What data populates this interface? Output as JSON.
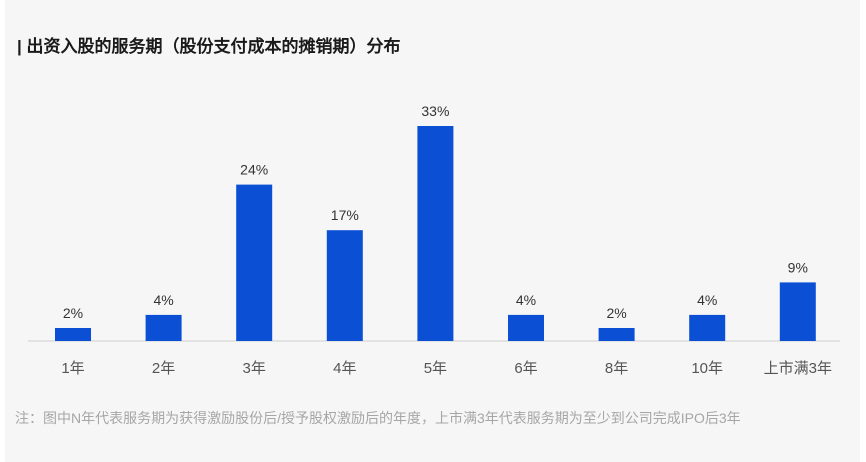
{
  "title": "| 出资入股的服务期（股份支付成本的摊销期）分布",
  "note": "注：图中N年代表服务期为获得激励股份后/授予股权激励后的年度，上市满3年代表服务期为至少到公司完成IPO后3年",
  "colors": {
    "bar": "#0a4fd4",
    "axis": "#cfcfcf",
    "label": "#333333",
    "tick": "#555555",
    "background": "#f6f6f6"
  },
  "chart_data": {
    "type": "bar",
    "title": "出资入股的服务期（股份支付成本的摊销期）分布",
    "categories": [
      "1年",
      "2年",
      "3年",
      "4年",
      "5年",
      "6年",
      "8年",
      "10年",
      "上市满3年"
    ],
    "values": [
      2,
      4,
      24,
      17,
      33,
      4,
      2,
      4,
      9
    ],
    "value_labels": [
      "2%",
      "4%",
      "24%",
      "17%",
      "33%",
      "4%",
      "2%",
      "4%",
      "9%"
    ],
    "unit": "%",
    "xlabel": "",
    "ylabel": "",
    "ylim": [
      0,
      33
    ],
    "grid": false,
    "legend": "none"
  }
}
